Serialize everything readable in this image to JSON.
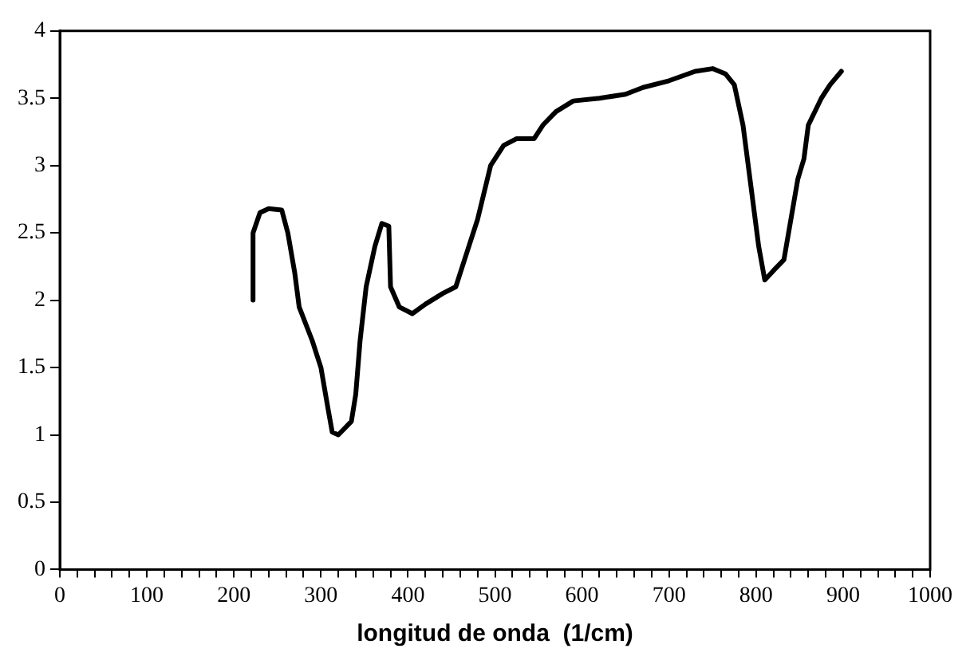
{
  "chart_data": {
    "type": "line",
    "xlabel": "longitud de onda  (1/cm)",
    "x": [
      222,
      222,
      230,
      240,
      255,
      262,
      270,
      275,
      290,
      300,
      308,
      313,
      320,
      335,
      340,
      345,
      352,
      362,
      370,
      378,
      380,
      390,
      405,
      420,
      440,
      455,
      465,
      480,
      495,
      510,
      525,
      545,
      555,
      570,
      590,
      620,
      650,
      670,
      700,
      730,
      750,
      765,
      775,
      785,
      795,
      803,
      810,
      820,
      832,
      840,
      848,
      855,
      860,
      875,
      885,
      898
    ],
    "series": [
      {
        "color": "#000000",
        "values": [
          2.0,
          2.5,
          2.65,
          2.68,
          2.67,
          2.5,
          2.2,
          1.95,
          1.7,
          1.5,
          1.2,
          1.02,
          1.0,
          1.1,
          1.3,
          1.7,
          2.1,
          2.4,
          2.57,
          2.55,
          2.1,
          1.95,
          1.9,
          1.97,
          2.05,
          2.1,
          2.3,
          2.6,
          3.0,
          3.15,
          3.2,
          3.2,
          3.3,
          3.4,
          3.48,
          3.5,
          3.53,
          3.58,
          3.63,
          3.7,
          3.72,
          3.68,
          3.6,
          3.3,
          2.8,
          2.4,
          2.15,
          2.22,
          2.3,
          2.6,
          2.9,
          3.05,
          3.3,
          3.5,
          3.6,
          3.7
        ]
      }
    ],
    "xlim": [
      0,
      1000
    ],
    "xticks": [
      0,
      {
        "value": 20,
        "label": null
      },
      {
        "value": 40,
        "label": null
      },
      {
        "value": 60,
        "label": null
      },
      {
        "value": 80,
        "label": null
      },
      100,
      {
        "value": 120,
        "label": null
      },
      {
        "value": 140,
        "label": null
      },
      {
        "value": 160,
        "label": null
      },
      {
        "value": 180,
        "label": null
      },
      200,
      {
        "value": 220,
        "label": null
      },
      {
        "value": 240,
        "label": null
      },
      {
        "value": 260,
        "label": null
      },
      {
        "value": 280,
        "label": null
      },
      300,
      {
        "value": 320,
        "label": null
      },
      {
        "value": 340,
        "label": null
      },
      {
        "value": 360,
        "label": null
      },
      {
        "value": 380,
        "label": null
      },
      400,
      {
        "value": 420,
        "label": null
      },
      {
        "value": 440,
        "label": null
      },
      {
        "value": 460,
        "label": null
      },
      {
        "value": 480,
        "label": null
      },
      500,
      {
        "value": 520,
        "label": null
      },
      {
        "value": 540,
        "label": null
      },
      {
        "value": 560,
        "label": null
      },
      {
        "value": 580,
        "label": null
      },
      600,
      {
        "value": 620,
        "label": null
      },
      {
        "value": 640,
        "label": null
      },
      {
        "value": 660,
        "label": null
      },
      {
        "value": 680,
        "label": null
      },
      700,
      {
        "value": 720,
        "label": null
      },
      {
        "value": 740,
        "label": null
      },
      {
        "value": 760,
        "label": null
      },
      {
        "value": 780,
        "label": null
      },
      800,
      {
        "value": 820,
        "label": null
      },
      {
        "value": 840,
        "label": null
      },
      {
        "value": 860,
        "label": null
      },
      {
        "value": 880,
        "label": null
      },
      900,
      {
        "value": 920,
        "label": null
      },
      {
        "value": 940,
        "label": null
      },
      {
        "value": 960,
        "label": null
      },
      {
        "value": 980,
        "label": null
      },
      1000
    ],
    "ylim": [
      0,
      4
    ],
    "yticks": [
      0,
      0.5,
      1,
      1.5,
      2,
      2.5,
      3,
      3.5,
      4
    ],
    "grid": false,
    "legend": false,
    "marker": "none",
    "line_style": "solid"
  }
}
